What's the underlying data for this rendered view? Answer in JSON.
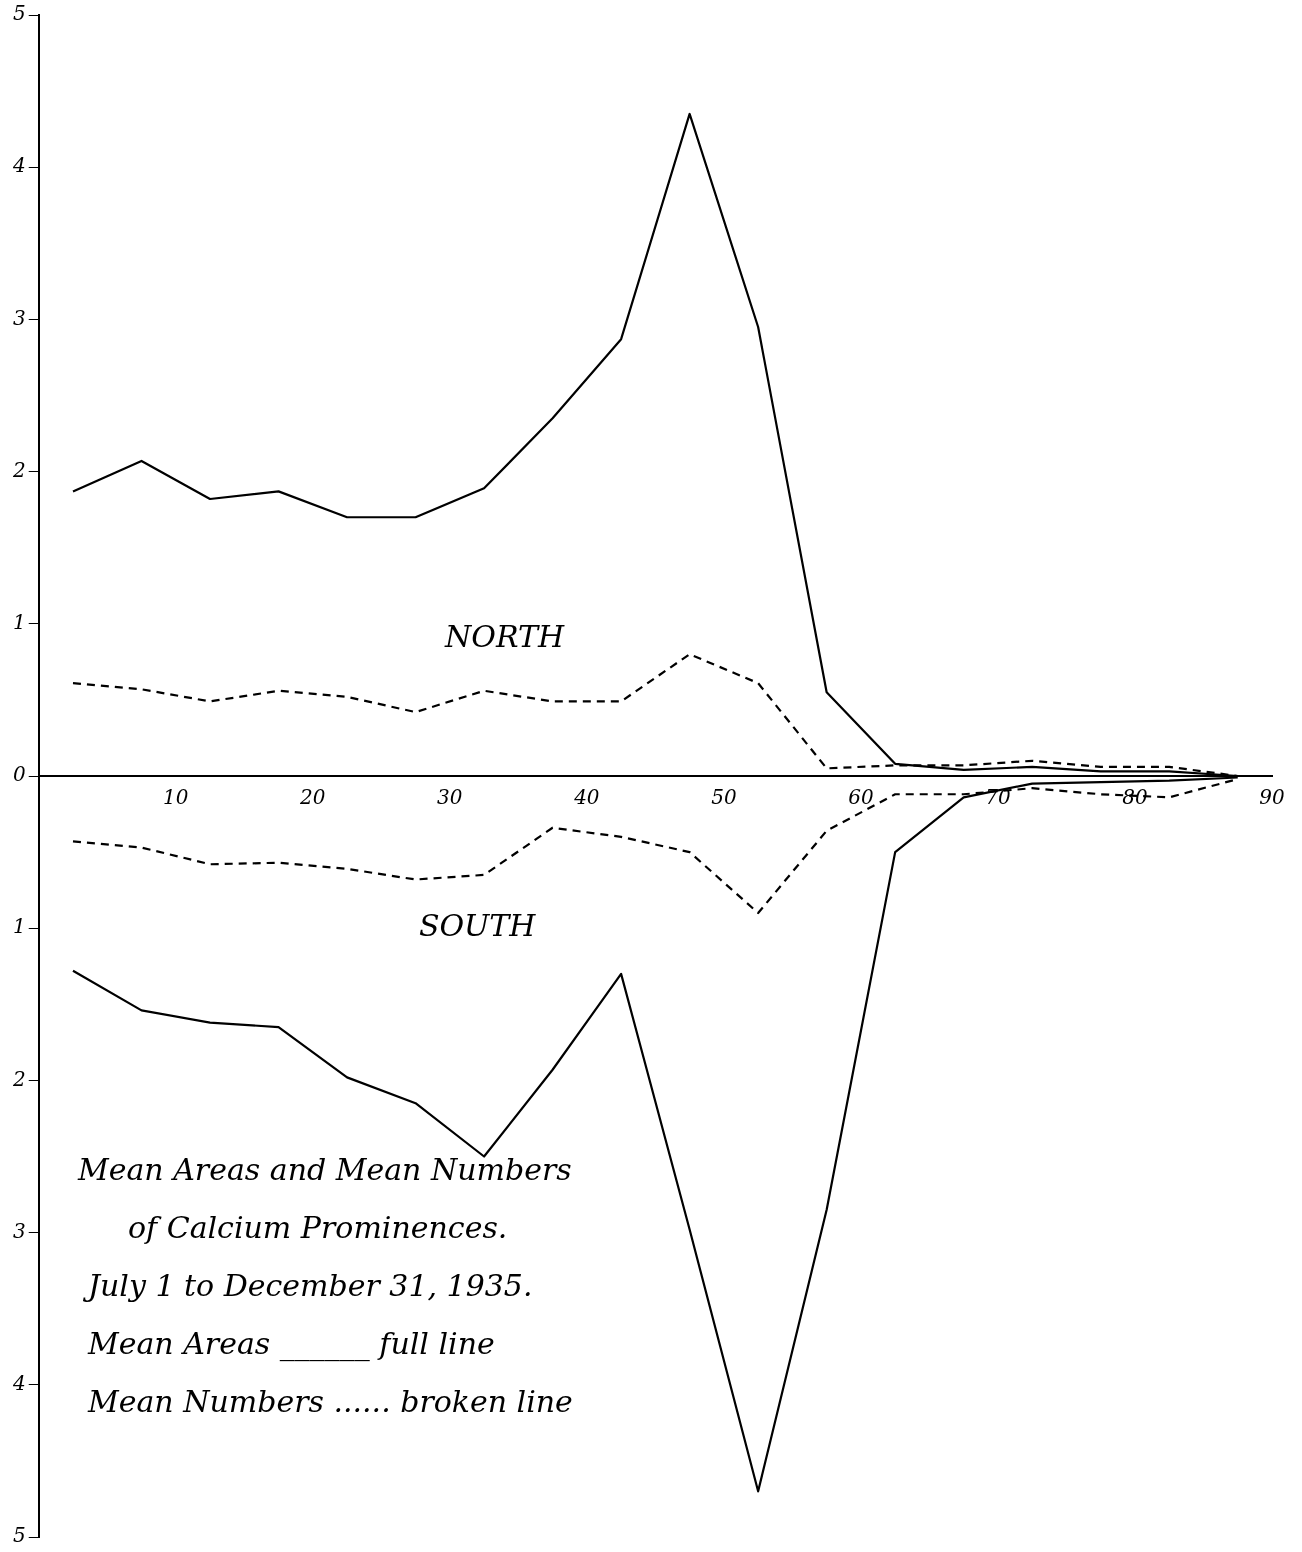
{
  "chart_data": {
    "type": "line",
    "title": "Mean Areas and Mean Numbers",
    "subtitle": "of Calcium Prominences.",
    "annotations": [
      "NORTH",
      "SOUTH",
      "July 1 to December 31, 1935.",
      "Mean Areas ______ full line",
      "Mean Numbers ...... broken line"
    ],
    "x": [
      2.5,
      7.5,
      12.5,
      17.5,
      22.5,
      27.5,
      32.5,
      37.5,
      42.5,
      47.5,
      52.5,
      57.5,
      62.5,
      67.5,
      72.5,
      77.5,
      82.5,
      87.5
    ],
    "series": [
      {
        "color": "#000000",
        "line_style": "solid",
        "values": [
          1.87,
          2.07,
          1.82,
          1.87,
          1.7,
          1.7,
          1.89,
          2.35,
          2.87,
          4.35,
          2.95,
          0.55,
          0.08,
          0.04,
          0.06,
          0.03,
          0.03,
          0
        ]
      },
      {
        "color": "#000000",
        "line_style": "dashed",
        "values": [
          0.61,
          0.57,
          0.49,
          0.56,
          0.52,
          0.42,
          0.56,
          0.49,
          0.49,
          0.8,
          0.61,
          0.05,
          0.07,
          0.07,
          0.1,
          0.06,
          0.06,
          0
        ]
      },
      {
        "color": "#000000",
        "line_style": "dashed",
        "values": [
          -0.43,
          -0.47,
          -0.58,
          -0.57,
          -0.61,
          -0.68,
          -0.65,
          -0.34,
          -0.4,
          -0.5,
          -0.9,
          -0.36,
          -0.12,
          -0.12,
          -0.08,
          -0.12,
          -0.14,
          -0.02
        ]
      },
      {
        "color": "#000000",
        "line_style": "solid",
        "values": [
          -1.28,
          -1.54,
          -1.62,
          -1.65,
          -1.98,
          -2.15,
          -2.5,
          -1.93,
          -1.3,
          -2.98,
          -4.7,
          -2.85,
          -0.5,
          -0.14,
          -0.05,
          -0.04,
          -0.03,
          -0.01
        ]
      }
    ],
    "xlim": [
      0,
      90
    ],
    "xticks": [
      10,
      20,
      30,
      40,
      50,
      60,
      70,
      80,
      90
    ],
    "ylim": [
      -5,
      5
    ],
    "yticks": [
      {
        "value": -5,
        "label": "5"
      },
      {
        "value": -4,
        "label": "4"
      },
      {
        "value": -3,
        "label": "3"
      },
      {
        "value": -2,
        "label": "2"
      },
      {
        "value": -1,
        "label": "1"
      },
      0,
      1,
      2,
      3,
      4,
      5
    ],
    "grid": false,
    "legend": false,
    "marker": "none"
  }
}
